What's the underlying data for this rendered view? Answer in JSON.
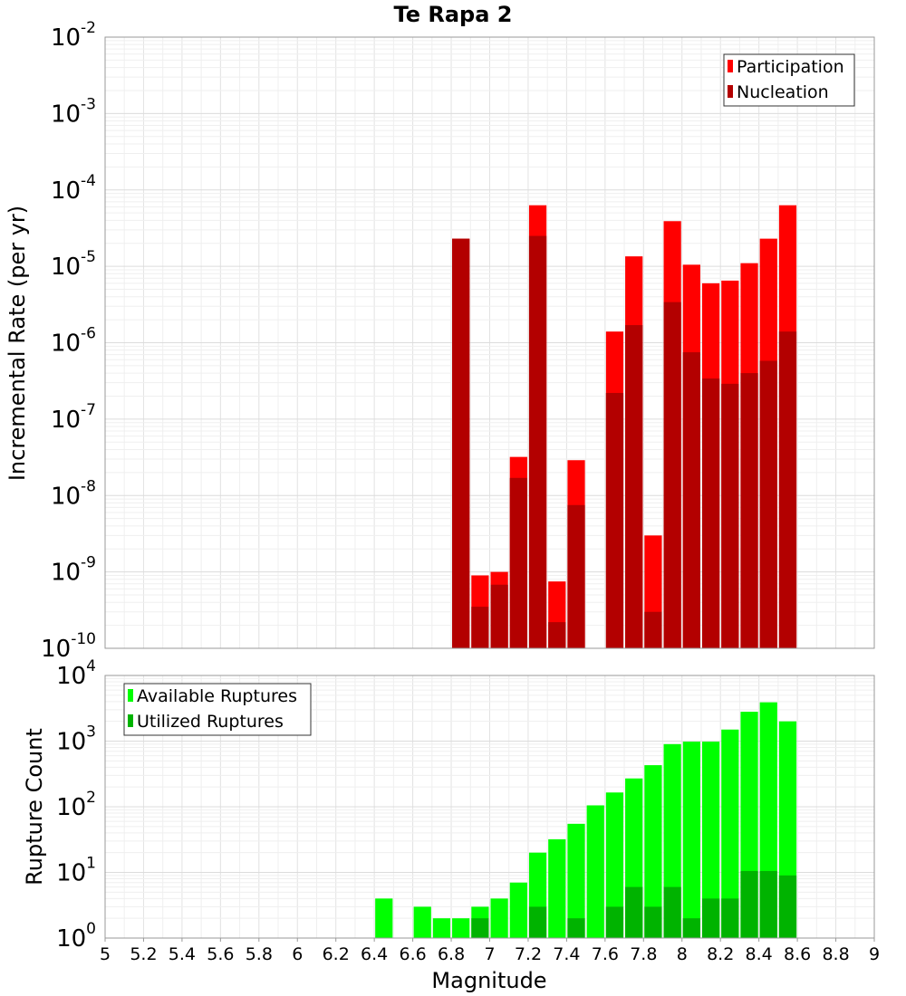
{
  "chart_data": [
    {
      "type": "bar",
      "title": "Te Rapa 2",
      "xlabel": "",
      "ylabel": "Incremental Rate (per yr)",
      "yscale": "log",
      "ylim": [
        1e-10,
        0.01
      ],
      "xlim": [
        5,
        9
      ],
      "bin_width": 0.1,
      "yticks": [
        {
          "base": "10",
          "exp": "-10"
        },
        {
          "base": "10",
          "exp": "-9"
        },
        {
          "base": "10",
          "exp": "-8"
        },
        {
          "base": "10",
          "exp": "-7"
        },
        {
          "base": "10",
          "exp": "-6"
        },
        {
          "base": "10",
          "exp": "-5"
        },
        {
          "base": "10",
          "exp": "-4"
        },
        {
          "base": "10",
          "exp": "-3"
        },
        {
          "base": "10",
          "exp": "-2"
        }
      ],
      "legend_position": "top-right",
      "x": [
        6.85,
        6.95,
        7.05,
        7.15,
        7.25,
        7.35,
        7.45,
        7.65,
        7.75,
        7.85,
        7.95,
        8.05,
        8.15,
        8.25,
        8.35,
        8.45,
        8.55
      ],
      "series": [
        {
          "name": "Participation",
          "color": "#ff0000",
          "values": [
            2.3e-05,
            9e-10,
            1e-09,
            3.2e-08,
            6.3e-05,
            7.5e-10,
            2.9e-08,
            1.4e-06,
            1.35e-05,
            3e-09,
            3.9e-05,
            1.05e-05,
            6e-06,
            6.5e-06,
            1.1e-05,
            2.3e-05,
            6.3e-05
          ]
        },
        {
          "name": "Nucleation",
          "color": "#b30000",
          "values": [
            2.3e-05,
            3.5e-10,
            6.8e-10,
            1.7e-08,
            2.5e-05,
            2.2e-10,
            7.5e-09,
            2.2e-07,
            1.7e-06,
            3e-10,
            3.4e-06,
            7.5e-07,
            3.4e-07,
            2.9e-07,
            4e-07,
            5.8e-07,
            1.4e-06
          ]
        }
      ]
    },
    {
      "type": "bar",
      "title": "",
      "xlabel": "Magnitude",
      "ylabel": "Rupture Count",
      "yscale": "log",
      "ylim": [
        1,
        10000
      ],
      "xlim": [
        5,
        9
      ],
      "bin_width": 0.1,
      "yticks": [
        {
          "base": "10",
          "exp": "0"
        },
        {
          "base": "10",
          "exp": "1"
        },
        {
          "base": "10",
          "exp": "2"
        },
        {
          "base": "10",
          "exp": "3"
        },
        {
          "base": "10",
          "exp": "4"
        }
      ],
      "xticks": [
        "5",
        "5.2",
        "5.4",
        "5.6",
        "5.8",
        "6",
        "6.2",
        "6.4",
        "6.6",
        "6.8",
        "7",
        "7.2",
        "7.4",
        "7.6",
        "7.8",
        "8",
        "8.2",
        "8.4",
        "8.6",
        "8.8",
        "9"
      ],
      "legend_position": "top-left",
      "x": [
        6.45,
        6.65,
        6.75,
        6.85,
        6.95,
        7.05,
        7.15,
        7.25,
        7.35,
        7.45,
        7.55,
        7.65,
        7.75,
        7.85,
        7.95,
        8.05,
        8.15,
        8.25,
        8.35,
        8.45,
        8.55
      ],
      "series": [
        {
          "name": "Available Ruptures",
          "color": "#00ff00",
          "values": [
            4,
            3,
            2,
            2,
            3,
            4,
            7,
            20,
            32,
            55,
            105,
            165,
            270,
            430,
            900,
            980,
            980,
            1500,
            2800,
            3900,
            2000
          ]
        },
        {
          "name": "Utilized Ruptures",
          "color": "#00b300",
          "values": [
            0,
            0,
            0,
            1,
            2,
            1,
            1,
            3,
            1,
            2,
            1,
            3,
            6,
            3,
            6,
            2,
            4,
            4,
            10.5,
            10.5,
            9
          ]
        }
      ]
    }
  ]
}
